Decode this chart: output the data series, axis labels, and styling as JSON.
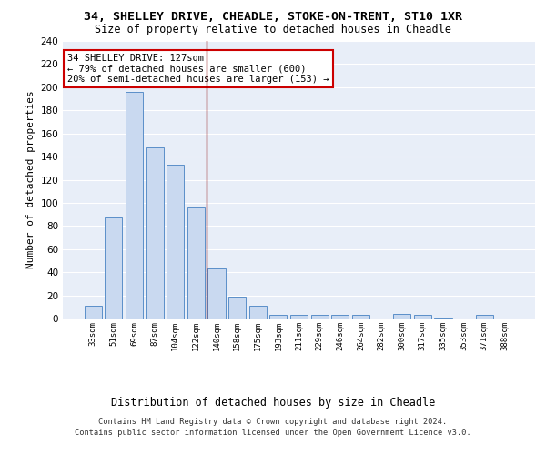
{
  "title1": "34, SHELLEY DRIVE, CHEADLE, STOKE-ON-TRENT, ST10 1XR",
  "title2": "Size of property relative to detached houses in Cheadle",
  "xlabel": "Distribution of detached houses by size in Cheadle",
  "ylabel": "Number of detached properties",
  "categories": [
    "33sqm",
    "51sqm",
    "69sqm",
    "87sqm",
    "104sqm",
    "122sqm",
    "140sqm",
    "158sqm",
    "175sqm",
    "193sqm",
    "211sqm",
    "229sqm",
    "246sqm",
    "264sqm",
    "282sqm",
    "300sqm",
    "317sqm",
    "335sqm",
    "353sqm",
    "371sqm",
    "388sqm"
  ],
  "values": [
    11,
    87,
    196,
    148,
    133,
    96,
    43,
    19,
    11,
    3,
    3,
    3,
    3,
    3,
    0,
    4,
    3,
    1,
    0,
    3,
    0
  ],
  "bar_color": "#c9d9f0",
  "bar_edge_color": "#5b8fc9",
  "vline_x": 5.5,
  "vline_color": "#8b0000",
  "annotation_text": "34 SHELLEY DRIVE: 127sqm\n← 79% of detached houses are smaller (600)\n20% of semi-detached houses are larger (153) →",
  "annotation_box_color": "white",
  "annotation_box_edge_color": "#cc0000",
  "ylim": [
    0,
    240
  ],
  "yticks": [
    0,
    20,
    40,
    60,
    80,
    100,
    120,
    140,
    160,
    180,
    200,
    220,
    240
  ],
  "bg_color": "#e8eef8",
  "grid_color": "white",
  "footer1": "Contains HM Land Registry data © Crown copyright and database right 2024.",
  "footer2": "Contains public sector information licensed under the Open Government Licence v3.0."
}
